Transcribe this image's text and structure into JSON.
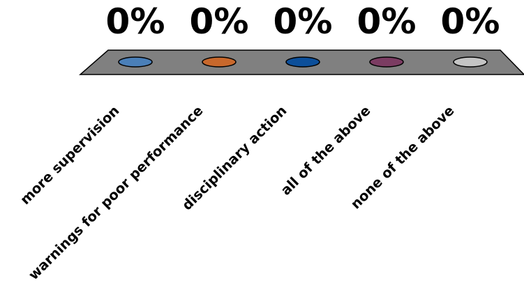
{
  "chart_data": {
    "type": "bar",
    "categories": [
      "more supervision",
      "warnings for poor performance",
      "disciplinary action",
      "all of the above",
      "none of the above"
    ],
    "values": [
      0,
      0,
      0,
      0,
      0
    ],
    "value_labels": [
      "0%",
      "0%",
      "0%",
      "0%",
      "0%"
    ],
    "ylim": [
      0,
      100
    ],
    "colors": [
      "#4a7fb8",
      "#c8682c",
      "#0c4f9a",
      "#7b3c62",
      "#c4c4c4"
    ],
    "floor_color": "#808080",
    "grid": false
  }
}
